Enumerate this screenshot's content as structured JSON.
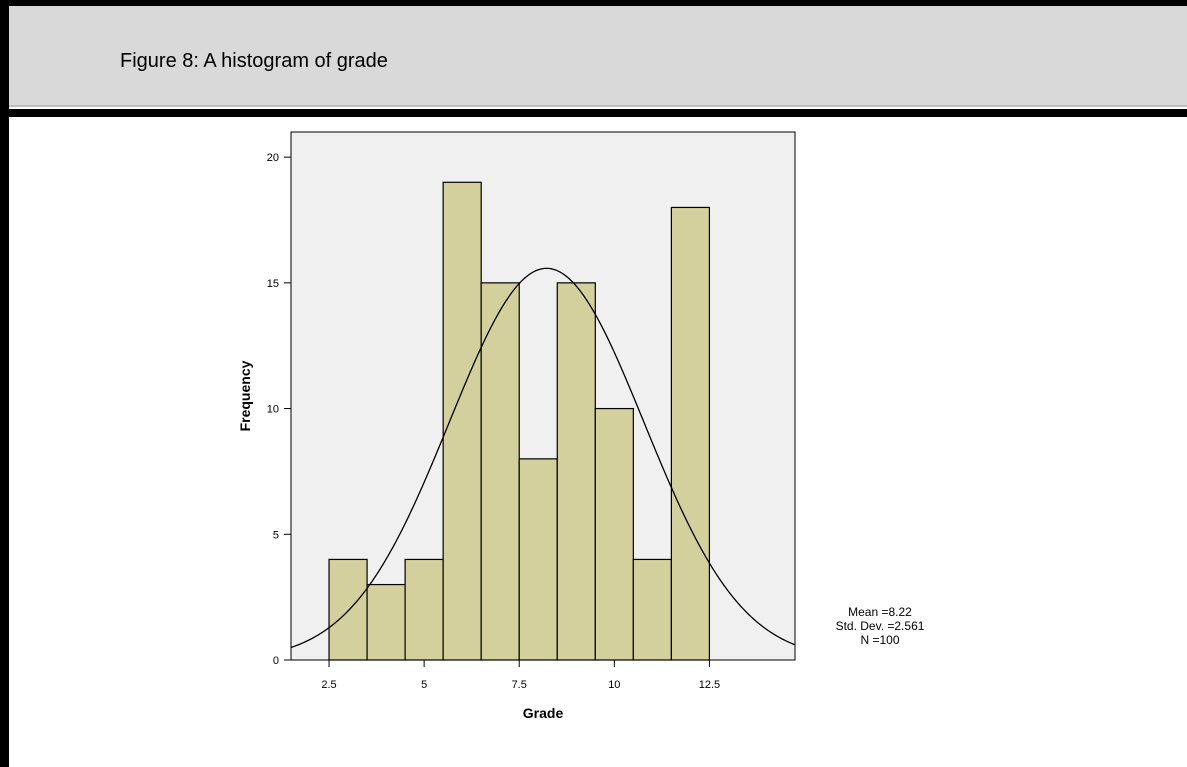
{
  "header": {
    "title": "Figure 8: A histogram of grade"
  },
  "colors": {
    "bar_fill": "#d3d09d",
    "plot_background": "#f0f0f0",
    "header_background": "#d9d9d9"
  },
  "stats": {
    "mean": "Mean =8.22",
    "std_dev": "Std. Dev. =2.561",
    "n": "N =100"
  },
  "chart_data": {
    "type": "bar",
    "title": "",
    "xlabel": "Grade",
    "ylabel": "Frequency",
    "xlim": [
      1.5,
      14.75
    ],
    "ylim": [
      0,
      21
    ],
    "xticks": [
      2.5,
      5,
      7.5,
      10,
      12.5
    ],
    "xtick_labels": [
      "2.5",
      "5",
      "7.5",
      "10",
      "12.5"
    ],
    "yticks": [
      0,
      5,
      10,
      15,
      20
    ],
    "ytick_labels": [
      "0",
      "5",
      "10",
      "15",
      "20"
    ],
    "bins": [
      {
        "x0": 2.5,
        "x1": 3.5,
        "count": 4
      },
      {
        "x0": 3.5,
        "x1": 4.5,
        "count": 3
      },
      {
        "x0": 4.5,
        "x1": 5.5,
        "count": 4
      },
      {
        "x0": 5.5,
        "x1": 6.5,
        "count": 19
      },
      {
        "x0": 6.5,
        "x1": 7.5,
        "count": 15
      },
      {
        "x0": 7.5,
        "x1": 8.5,
        "count": 8
      },
      {
        "x0": 8.5,
        "x1": 9.5,
        "count": 15
      },
      {
        "x0": 9.5,
        "x1": 10.5,
        "count": 10
      },
      {
        "x0": 10.5,
        "x1": 11.5,
        "count": 4
      },
      {
        "x0": 11.5,
        "x1": 12.5,
        "count": 18
      }
    ],
    "normal_curve": {
      "mean": 8.22,
      "std_dev": 2.561,
      "n": 100,
      "bin_width": 1
    },
    "grid": false,
    "legend": "none"
  }
}
